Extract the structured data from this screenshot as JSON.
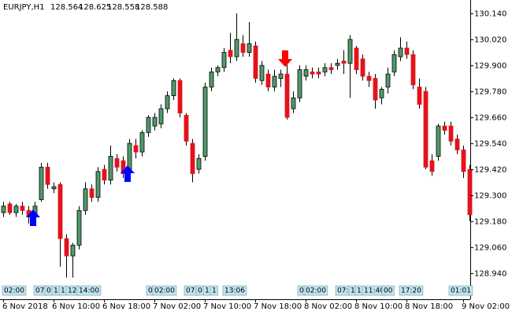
{
  "chart_data": {
    "type": "candlestick",
    "symbol": "EURJPY,H1",
    "header_ohlc": [
      128.564,
      128.625,
      128.558,
      128.588
    ],
    "categories": [
      "6 Nov 2018",
      null,
      null,
      null,
      null,
      null,
      null,
      null,
      "6 Nov 10:00",
      null,
      null,
      null,
      null,
      null,
      null,
      null,
      "6 Nov 18:00",
      null,
      null,
      null,
      null,
      null,
      null,
      null,
      "7 Nov 02:00",
      null,
      null,
      null,
      null,
      null,
      null,
      null,
      "7 Nov 10:00",
      null,
      null,
      null,
      null,
      null,
      null,
      null,
      "7 Nov 18:00",
      null,
      null,
      null,
      null,
      null,
      null,
      null,
      "8 Nov 02:00",
      null,
      null,
      null,
      null,
      null,
      null,
      null,
      "8 Nov 10:00",
      null,
      null,
      null,
      null,
      null,
      null,
      null,
      "8 Nov 18:00",
      null,
      null,
      null,
      null,
      null,
      null,
      null,
      null,
      "9 Nov 02:00",
      null
    ],
    "open": [
      129.22,
      129.26,
      129.22,
      129.25,
      129.23,
      129.2,
      129.28,
      129.43,
      129.33,
      129.35,
      129.1,
      129.02,
      129.07,
      129.23,
      129.33,
      129.29,
      129.42,
      129.37,
      129.47,
      129.46,
      129.42,
      129.53,
      129.5,
      129.59,
      129.62,
      129.63,
      129.7,
      129.76,
      129.83,
      129.67,
      129.54,
      129.42,
      129.48,
      129.8,
      129.87,
      129.89,
      129.97,
      129.94,
      130.0,
      129.96,
      129.99,
      129.83,
      129.86,
      129.8,
      129.84,
      129.86,
      129.7,
      129.75,
      129.85,
      129.87,
      129.87,
      129.87,
      129.89,
      129.9,
      129.92,
      129.91,
      129.98,
      129.93,
      129.85,
      129.84,
      129.75,
      129.8,
      129.87,
      129.94,
      129.98,
      129.95,
      129.8,
      129.78,
      129.46,
      129.48,
      129.62,
      129.62,
      129.56,
      129.51,
      129.42
    ],
    "high": [
      129.27,
      129.27,
      129.26,
      129.27,
      129.25,
      129.27,
      129.45,
      129.45,
      129.36,
      129.36,
      129.12,
      129.08,
      129.25,
      129.36,
      129.35,
      129.43,
      129.44,
      129.53,
      129.49,
      129.48,
      129.56,
      129.56,
      129.6,
      129.67,
      129.68,
      129.72,
      129.78,
      129.84,
      129.84,
      129.68,
      129.56,
      129.49,
      129.82,
      129.89,
      129.9,
      129.98,
      130.05,
      130.14,
      130.04,
      130.1,
      130.01,
      129.92,
      129.88,
      129.88,
      129.88,
      129.91,
      129.78,
      129.9,
      129.9,
      129.89,
      129.89,
      129.91,
      129.91,
      129.93,
      129.97,
      130.04,
      129.99,
      129.95,
      129.87,
      129.86,
      129.8,
      129.89,
      129.97,
      130.03,
      130.01,
      129.97,
      129.84,
      129.8,
      129.49,
      129.63,
      129.64,
      129.64,
      129.58,
      129.53,
      129.44
    ],
    "low": [
      129.2,
      129.21,
      129.2,
      129.21,
      129.17,
      129.18,
      129.27,
      129.33,
      129.31,
      128.97,
      128.92,
      128.92,
      129.05,
      129.21,
      129.27,
      129.27,
      129.35,
      129.35,
      129.41,
      129.38,
      129.4,
      129.47,
      129.48,
      129.57,
      129.6,
      129.61,
      129.68,
      129.74,
      129.66,
      129.53,
      129.36,
      129.4,
      129.46,
      129.78,
      129.85,
      129.87,
      129.91,
      129.92,
      129.94,
      129.94,
      129.82,
      129.81,
      129.78,
      129.78,
      129.8,
      129.65,
      129.68,
      129.73,
      129.83,
      129.84,
      129.84,
      129.85,
      129.86,
      129.88,
      129.86,
      129.75,
      129.86,
      129.83,
      129.8,
      129.7,
      129.72,
      129.77,
      129.85,
      129.92,
      129.93,
      129.79,
      129.7,
      129.42,
      129.39,
      129.46,
      129.58,
      129.53,
      129.49,
      129.38,
      129.18
    ],
    "close": [
      129.25,
      129.22,
      129.25,
      129.23,
      129.2,
      129.25,
      129.43,
      129.35,
      129.34,
      129.1,
      129.02,
      129.07,
      129.23,
      129.33,
      129.29,
      129.41,
      129.37,
      129.48,
      129.43,
      129.4,
      129.54,
      129.5,
      129.59,
      129.66,
      129.66,
      129.7,
      129.76,
      129.83,
      129.68,
      129.55,
      129.4,
      129.47,
      129.8,
      129.87,
      129.89,
      129.96,
      129.94,
      130.02,
      129.96,
      130.0,
      129.84,
      129.9,
      129.8,
      129.85,
      129.86,
      129.66,
      129.75,
      129.88,
      129.88,
      129.86,
      129.86,
      129.89,
      129.88,
      129.91,
      129.91,
      130.02,
      129.88,
      129.85,
      129.83,
      129.74,
      129.79,
      129.86,
      129.95,
      129.98,
      129.95,
      129.81,
      129.72,
      129.43,
      129.41,
      129.62,
      129.6,
      129.55,
      129.51,
      129.41,
      129.21
    ],
    "up_color": "#4f9a6a",
    "down_color": "#e3131b",
    "ylim": [
      128.82,
      130.202
    ],
    "yticks": [
      {
        "value": 130.14,
        "label": "130.140"
      },
      {
        "value": 130.02,
        "label": "130.020"
      },
      {
        "value": 129.9,
        "label": "129.900"
      },
      {
        "value": 129.78,
        "label": "129.780"
      },
      {
        "value": 129.66,
        "label": "129.660"
      },
      {
        "value": 129.54,
        "label": "129.540"
      },
      {
        "value": 129.42,
        "label": "129.420"
      },
      {
        "value": 129.3,
        "label": "129.300"
      },
      {
        "value": 129.18,
        "label": "129.180"
      },
      {
        "value": 129.06,
        "label": "129.060"
      },
      {
        "value": 128.94,
        "label": "128.940"
      }
    ],
    "session_labels": [
      "02:00",
      "07:",
      "0",
      "1",
      "1",
      "12:",
      "14:00",
      "0",
      "02:00",
      "07:",
      "0",
      "1",
      "1",
      "13:06",
      "0",
      "02:00",
      "07:",
      "1",
      "1",
      "11:40",
      "00",
      "17:20",
      "01:01"
    ]
  }
}
